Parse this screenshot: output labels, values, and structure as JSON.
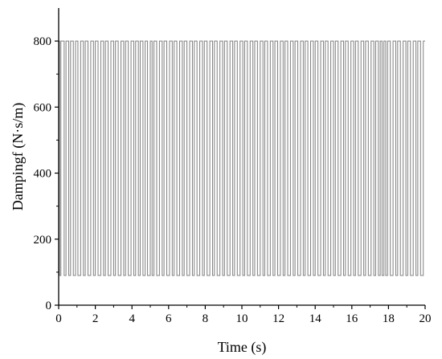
{
  "chart_data": {
    "type": "line",
    "xlabel": "Time (s)",
    "ylabel": "Dampingf (N·s/m)",
    "xlim": [
      0,
      20
    ],
    "ylim": [
      0,
      900
    ],
    "xticks": [
      0,
      2,
      4,
      6,
      8,
      10,
      12,
      14,
      16,
      18,
      20
    ],
    "yticks": [
      0,
      200,
      400,
      600,
      800
    ],
    "grid": false,
    "legend": "none",
    "line_color": "#808080",
    "series": [
      {
        "levels": [
          90,
          800
        ],
        "initial_level": 800,
        "switch_times": [
          0.05,
          0.12,
          0.3,
          0.4,
          0.55,
          0.65,
          0.8,
          0.92,
          1.05,
          1.2,
          1.35,
          1.45,
          1.6,
          1.75,
          1.9,
          2.0,
          2.15,
          2.3,
          2.45,
          2.55,
          2.7,
          2.85,
          3.0,
          3.1,
          3.25,
          3.4,
          3.55,
          3.65,
          3.8,
          3.95,
          4.1,
          4.2,
          4.35,
          4.45,
          4.6,
          4.72,
          4.85,
          5.0,
          5.1,
          5.2,
          5.35,
          5.5,
          5.65,
          5.75,
          5.9,
          6.05,
          6.2,
          6.3,
          6.45,
          6.6,
          6.75,
          6.85,
          7.0,
          7.15,
          7.3,
          7.4,
          7.55,
          7.7,
          7.85,
          7.95,
          8.1,
          8.25,
          8.4,
          8.5,
          8.65,
          8.8,
          8.95,
          9.05,
          9.2,
          9.35,
          9.5,
          9.6,
          9.75,
          9.9,
          10.05,
          10.15,
          10.3,
          10.45,
          10.6,
          10.7,
          10.85,
          11.0,
          11.15,
          11.25,
          11.4,
          11.55,
          11.7,
          11.8,
          11.95,
          12.1,
          12.25,
          12.35,
          12.5,
          12.65,
          12.8,
          12.9,
          13.05,
          13.2,
          13.35,
          13.45,
          13.6,
          13.75,
          13.9,
          14.0,
          14.15,
          14.3,
          14.45,
          14.55,
          14.7,
          14.85,
          15.0,
          15.1,
          15.25,
          15.4,
          15.55,
          15.65,
          15.8,
          15.95,
          16.1,
          16.2,
          16.35,
          16.5,
          16.65,
          16.75,
          16.9,
          17.05,
          17.2,
          17.3,
          17.45,
          17.55,
          17.65,
          17.75,
          17.85,
          17.95,
          18.1,
          18.25,
          18.4,
          18.5,
          18.65,
          18.8,
          18.95,
          19.05,
          19.2,
          19.35,
          19.5,
          19.6,
          19.75,
          19.9
        ]
      }
    ]
  }
}
